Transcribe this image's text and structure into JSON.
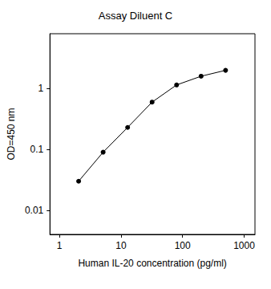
{
  "chart_data": {
    "type": "line",
    "title": "Assay Diluent C",
    "xlabel": "Human IL-20 concentration (pg/ml)",
    "ylabel": "OD=450 nm",
    "x": [
      2.05,
      5.12,
      12.8,
      32,
      80,
      200,
      500
    ],
    "values": [
      0.03,
      0.09,
      0.23,
      0.6,
      1.15,
      1.6,
      2.0
    ],
    "xlim": [
      0.7,
      1500
    ],
    "xticks": [
      1,
      10,
      100,
      1000
    ],
    "ylim": [
      0.004,
      8
    ],
    "yticks": [
      0.01,
      0.1,
      1
    ],
    "log": true,
    "grid": false,
    "color": "#000000",
    "marker": "circle",
    "line_style": "solid"
  }
}
